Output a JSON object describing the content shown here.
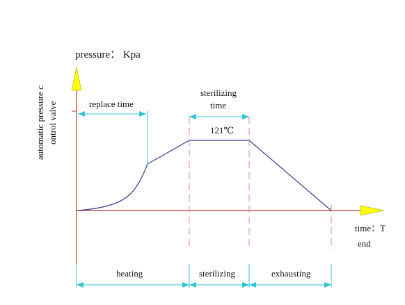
{
  "y_axis_title": "pressure： Kpa",
  "side_label_line1": "automatic pressure c",
  "side_label_line2": "ontrol valve",
  "x_axis_title": "time：T",
  "x_axis_end": "end",
  "replace_time_label": "replace time",
  "sterilizing_time_line1": "sterilizing",
  "sterilizing_time_line2": "time",
  "temperature_label": "121℃",
  "phases": {
    "heating": "heating",
    "sterilizing": "sterilizing",
    "exhausting": "exhausting"
  },
  "colors": {
    "axis": "#c0392b",
    "curve": "#3b3b8f",
    "dimension": "#2fc4d8",
    "dashed": "#e87ab6",
    "arrow_fill": "#ffff00"
  }
}
